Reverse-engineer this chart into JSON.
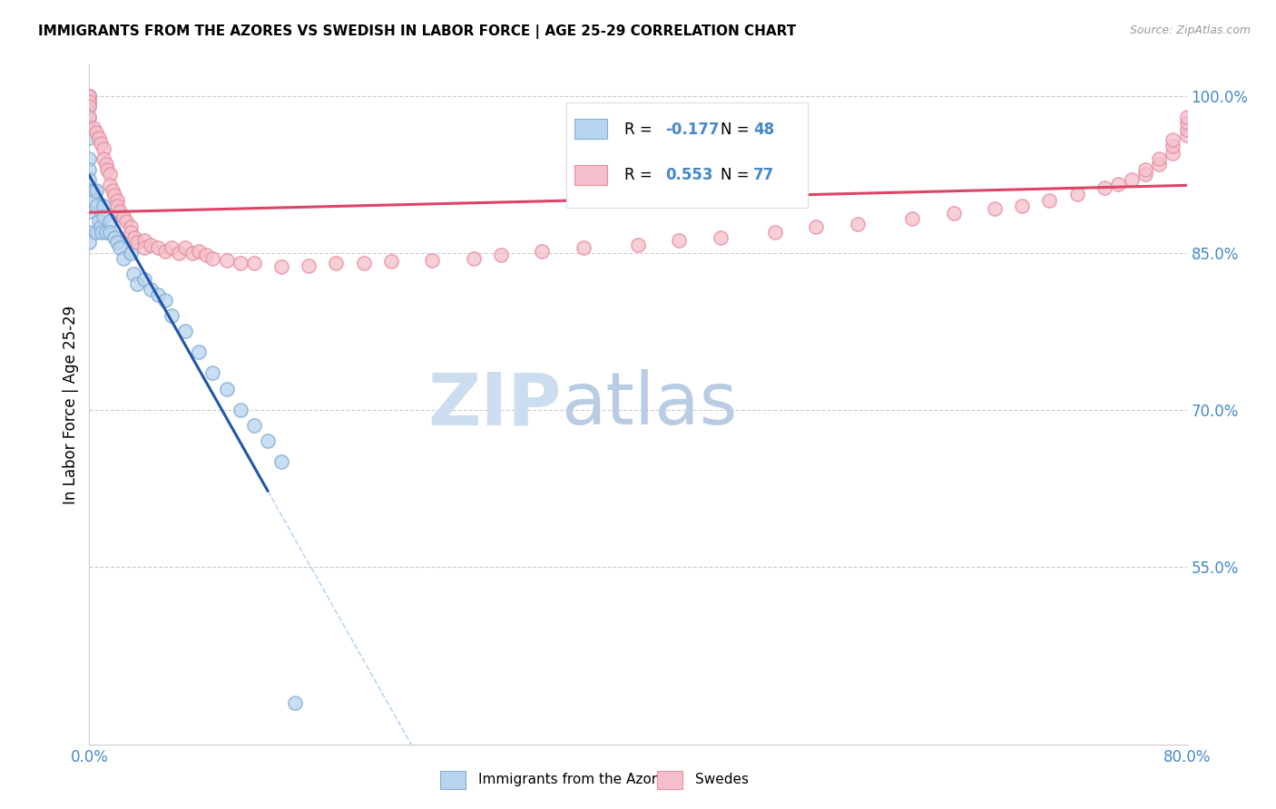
{
  "title": "IMMIGRANTS FROM THE AZORES VS SWEDISH IN LABOR FORCE | AGE 25-29 CORRELATION CHART",
  "source": "Source: ZipAtlas.com",
  "ylabel": "In Labor Force | Age 25-29",
  "xmin": 0.0,
  "xmax": 0.8,
  "ymin": 0.38,
  "ymax": 1.03,
  "xticks": [
    0.0,
    0.1,
    0.2,
    0.3,
    0.4,
    0.5,
    0.6,
    0.7,
    0.8
  ],
  "yticks": [
    0.55,
    0.7,
    0.85,
    1.0
  ],
  "yticklabels": [
    "55.0%",
    "70.0%",
    "85.0%",
    "100.0%"
  ],
  "grid_color": "#cccccc",
  "background_color": "#ffffff",
  "blue_edge_color": "#82aed4",
  "blue_face_color": "#b8d4ee",
  "pink_edge_color": "#e88fa0",
  "pink_face_color": "#f4bfca",
  "blue_line_color": "#2255aa",
  "pink_line_color": "#dd4466",
  "dashed_color": "#aaccee",
  "legend_R_blue": "-0.177",
  "legend_N_blue": "48",
  "legend_R_pink": "0.553",
  "legend_N_pink": "77",
  "watermark_zip": "ZIP",
  "watermark_atlas": "atlas",
  "watermark_color_zip": "#ccddf0",
  "watermark_color_atlas": "#b8cce4",
  "blue_dots_x": [
    0.0,
    0.0,
    0.0,
    0.0,
    0.0,
    0.0,
    0.0,
    0.0,
    0.0,
    0.0,
    0.0,
    0.0,
    0.0,
    0.0,
    0.003,
    0.003,
    0.005,
    0.005,
    0.005,
    0.007,
    0.008,
    0.009,
    0.01,
    0.01,
    0.012,
    0.015,
    0.015,
    0.018,
    0.02,
    0.022,
    0.025,
    0.03,
    0.032,
    0.035,
    0.04,
    0.045,
    0.05,
    0.055,
    0.06,
    0.07,
    0.08,
    0.09,
    0.1,
    0.11,
    0.12,
    0.13,
    0.14,
    0.15
  ],
  "blue_dots_y": [
    1.0,
    1.0,
    0.995,
    0.99,
    0.98,
    0.97,
    0.96,
    0.94,
    0.93,
    0.92,
    0.91,
    0.89,
    0.87,
    0.86,
    0.91,
    0.9,
    0.91,
    0.895,
    0.87,
    0.88,
    0.875,
    0.87,
    0.895,
    0.885,
    0.87,
    0.88,
    0.87,
    0.865,
    0.86,
    0.855,
    0.845,
    0.85,
    0.83,
    0.82,
    0.825,
    0.815,
    0.81,
    0.805,
    0.79,
    0.775,
    0.755,
    0.735,
    0.72,
    0.7,
    0.685,
    0.67,
    0.65,
    0.42
  ],
  "pink_dots_x": [
    0.0,
    0.0,
    0.0,
    0.0,
    0.0,
    0.003,
    0.005,
    0.007,
    0.008,
    0.01,
    0.01,
    0.012,
    0.013,
    0.015,
    0.015,
    0.017,
    0.018,
    0.02,
    0.02,
    0.022,
    0.025,
    0.027,
    0.03,
    0.03,
    0.033,
    0.035,
    0.04,
    0.04,
    0.045,
    0.05,
    0.055,
    0.06,
    0.065,
    0.07,
    0.075,
    0.08,
    0.085,
    0.09,
    0.1,
    0.11,
    0.12,
    0.14,
    0.16,
    0.18,
    0.2,
    0.22,
    0.25,
    0.28,
    0.3,
    0.33,
    0.36,
    0.4,
    0.43,
    0.46,
    0.5,
    0.53,
    0.56,
    0.6,
    0.63,
    0.66,
    0.68,
    0.7,
    0.72,
    0.74,
    0.75,
    0.76,
    0.77,
    0.77,
    0.78,
    0.78,
    0.79,
    0.79,
    0.79,
    0.8,
    0.8,
    0.8,
    0.8
  ],
  "pink_dots_y": [
    1.0,
    1.0,
    0.995,
    0.99,
    0.98,
    0.97,
    0.965,
    0.96,
    0.955,
    0.95,
    0.94,
    0.935,
    0.93,
    0.925,
    0.915,
    0.91,
    0.905,
    0.9,
    0.895,
    0.89,
    0.885,
    0.88,
    0.875,
    0.87,
    0.865,
    0.86,
    0.862,
    0.855,
    0.858,
    0.855,
    0.852,
    0.855,
    0.85,
    0.855,
    0.85,
    0.852,
    0.848,
    0.845,
    0.843,
    0.84,
    0.84,
    0.837,
    0.838,
    0.84,
    0.84,
    0.842,
    0.843,
    0.845,
    0.848,
    0.852,
    0.855,
    0.858,
    0.862,
    0.865,
    0.87,
    0.875,
    0.878,
    0.883,
    0.888,
    0.892,
    0.895,
    0.9,
    0.906,
    0.912,
    0.916,
    0.92,
    0.925,
    0.93,
    0.935,
    0.94,
    0.945,
    0.952,
    0.958,
    0.963,
    0.968,
    0.975,
    0.98
  ]
}
